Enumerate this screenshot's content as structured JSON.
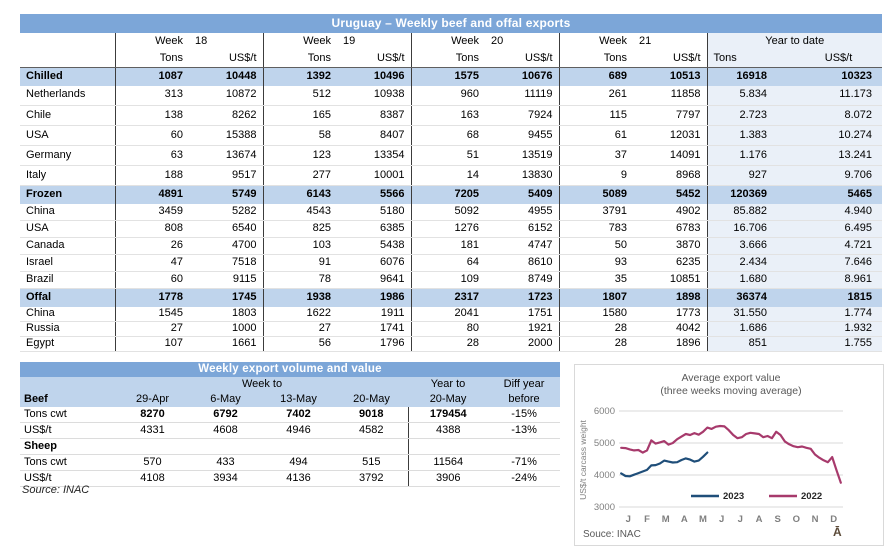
{
  "colors": {
    "title_bar": "#7CA6D8",
    "band": "#BFD4EC",
    "ytd_fill": "#EAF0F8",
    "divider": "#3c3c3c",
    "gridline": "#d9d9d9",
    "line_2023": "#1f4e79",
    "line_2022": "#a73a6c",
    "chart_text": "#595959",
    "axis_text": "#7f7f7f"
  },
  "main_table": {
    "title": "Uruguay – Weekly beef and offal exports",
    "weeks": [
      {
        "label": "Week",
        "num": "18"
      },
      {
        "label": "Week",
        "num": "19"
      },
      {
        "label": "Week",
        "num": "20"
      },
      {
        "label": "Week",
        "num": "21"
      }
    ],
    "ytd_label": "Year to date",
    "units": {
      "tons": "Tons",
      "usdt": "US$/t"
    },
    "rows": [
      {
        "label": "Chilled",
        "type": "section",
        "values": [
          "1087",
          "10448",
          "1392",
          "10496",
          "1575",
          "10676",
          "689",
          "10513",
          "16918",
          "10323"
        ]
      },
      {
        "label": "Netherlands",
        "type": "country",
        "values": [
          "313",
          "10872",
          "512",
          "10938",
          "960",
          "11119",
          "261",
          "11858",
          "5.834",
          "11.173"
        ]
      },
      {
        "label": "Chile",
        "type": "country",
        "values": [
          "138",
          "8262",
          "165",
          "8387",
          "163",
          "7924",
          "115",
          "7797",
          "2.723",
          "8.072"
        ]
      },
      {
        "label": "USA",
        "type": "country",
        "values": [
          "60",
          "15388",
          "58",
          "8407",
          "68",
          "9455",
          "61",
          "12031",
          "1.383",
          "10.274"
        ]
      },
      {
        "label": "Germany",
        "type": "country",
        "values": [
          "63",
          "13674",
          "123",
          "13354",
          "51",
          "13519",
          "37",
          "14091",
          "1.176",
          "13.241"
        ]
      },
      {
        "label": "Italy",
        "type": "country",
        "values": [
          "188",
          "9517",
          "277",
          "10001",
          "14",
          "13830",
          "9",
          "8968",
          "927",
          "9.706"
        ]
      },
      {
        "label": "Frozen",
        "type": "section",
        "values": [
          "4891",
          "5749",
          "6143",
          "5566",
          "7205",
          "5409",
          "5089",
          "5452",
          "120369",
          "5465"
        ]
      },
      {
        "label": "China",
        "type": "country",
        "values": [
          "3459",
          "5282",
          "4543",
          "5180",
          "5092",
          "4955",
          "3791",
          "4902",
          "85.882",
          "4.940"
        ]
      },
      {
        "label": "USA",
        "type": "country",
        "values": [
          "808",
          "6540",
          "825",
          "6385",
          "1276",
          "6152",
          "783",
          "6783",
          "16.706",
          "6.495"
        ]
      },
      {
        "label": "Canada",
        "type": "country",
        "values": [
          "26",
          "4700",
          "103",
          "5438",
          "181",
          "4747",
          "50",
          "3870",
          "3.666",
          "4.721"
        ]
      },
      {
        "label": "Israel",
        "type": "country",
        "values": [
          "47",
          "7518",
          "91",
          "6076",
          "64",
          "8610",
          "93",
          "6235",
          "2.434",
          "7.646"
        ]
      },
      {
        "label": "Brazil",
        "type": "country",
        "values": [
          "60",
          "9115",
          "78",
          "9641",
          "109",
          "8749",
          "35",
          "10851",
          "1.680",
          "8.961"
        ]
      },
      {
        "label": "Offal",
        "type": "section",
        "values": [
          "1778",
          "1745",
          "1938",
          "1986",
          "2317",
          "1723",
          "1807",
          "1898",
          "36374",
          "1815"
        ]
      },
      {
        "label": "China",
        "type": "country",
        "values": [
          "1545",
          "1803",
          "1622",
          "1911",
          "2041",
          "1751",
          "1580",
          "1773",
          "31.550",
          "1.774"
        ]
      },
      {
        "label": "Russia",
        "type": "country",
        "values": [
          "27",
          "1000",
          "27",
          "1741",
          "80",
          "1921",
          "28",
          "4042",
          "1.686",
          "1.932"
        ]
      },
      {
        "label": "Egypt",
        "type": "country",
        "values": [
          "107",
          "1661",
          "56",
          "1796",
          "28",
          "2000",
          "28",
          "1896",
          "851",
          "1.755"
        ]
      }
    ]
  },
  "weekly_table": {
    "title": "Weekly export volume and value",
    "group_headers": {
      "week_to": "Week to",
      "year_to": "Year to",
      "diff_year": "Diff year"
    },
    "header_row": [
      "Beef",
      "29-Apr",
      "6-May",
      "13-May",
      "20-May",
      "20-May",
      "before"
    ],
    "rows": [
      {
        "label": "Tons cwt",
        "bold_values": true,
        "values": [
          "8270",
          "6792",
          "7402",
          "9018",
          "179454",
          "-15%"
        ]
      },
      {
        "label": "US$/t",
        "values": [
          "4331",
          "4608",
          "4946",
          "4582",
          "4388",
          "-13%"
        ]
      },
      {
        "label": "Sheep",
        "label_bold": true,
        "values": [
          "",
          "",
          "",
          "",
          "",
          ""
        ]
      },
      {
        "label": "Tons cwt",
        "values": [
          "570",
          "433",
          "494",
          "515",
          "11564",
          "-71%"
        ]
      },
      {
        "label": "US$/t",
        "values": [
          "4108",
          "3934",
          "4136",
          "3792",
          "3906",
          "-24%"
        ]
      }
    ],
    "source": "Source: INAC"
  },
  "chart_data": {
    "type": "line",
    "title": "Average export  value",
    "subtitle": "(three weeks moving average)",
    "ylabel": "US$/t carcass weight",
    "ylim": [
      3000,
      6000
    ],
    "yticks": [
      6000,
      5000,
      4000,
      3000
    ],
    "x_months": [
      "J",
      "F",
      "M",
      "A",
      "M",
      "J",
      "J",
      "A",
      "S",
      "O",
      "N",
      "D"
    ],
    "x_unit": "week of year (index+1 of values array, 52 weeks per year)",
    "grid": "horizontal only",
    "legend_position": "inside bottom center",
    "series": [
      {
        "name": "2023",
        "color": "#1f4e79",
        "values": [
          4050,
          3970,
          3960,
          4010,
          4060,
          4110,
          4160,
          4300,
          4310,
          4360,
          4450,
          4420,
          4390,
          4400,
          4470,
          4520,
          4480,
          4420,
          4450,
          4570,
          4700
        ]
      },
      {
        "name": "2022",
        "color": "#a73a6c",
        "values": [
          4850,
          4840,
          4800,
          4770,
          4780,
          4700,
          4770,
          5080,
          4980,
          5020,
          5060,
          4950,
          5000,
          5120,
          5200,
          5280,
          5250,
          5310,
          5260,
          5350,
          5480,
          5440,
          5510,
          5530,
          5520,
          5400,
          5250,
          5150,
          5180,
          5280,
          5320,
          5300,
          5280,
          5180,
          5220,
          5150,
          5350,
          5250,
          5050,
          4960,
          4900,
          4870,
          4890,
          4850,
          4820,
          4640,
          4540,
          4460,
          4400,
          4560,
          4150,
          3760
        ]
      }
    ],
    "source": "Souce: INAC",
    "corner_glyph": "Ā"
  }
}
